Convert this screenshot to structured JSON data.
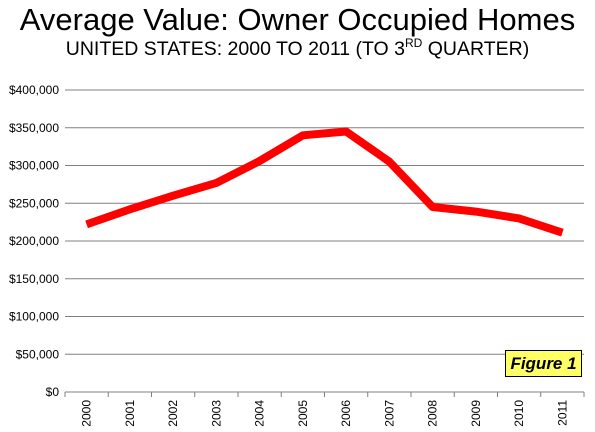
{
  "header": {
    "title": "Average Value: Owner Occupied Homes",
    "subtitle_main": "UNITED STATES: 2000 TO 2011 (TO 3",
    "subtitle_sup": "RD",
    "subtitle_end": " QUARTER)"
  },
  "figure_label": "Figure 1",
  "chart_data": {
    "type": "line",
    "title": "Average Value: Owner Occupied Homes",
    "subtitle": "UNITED STATES: 2000 TO 2011 (TO 3RD QUARTER)",
    "xlabel": "",
    "ylabel": "",
    "categories": [
      "2000",
      "2001",
      "2002",
      "2003",
      "2004",
      "2005",
      "2006",
      "2007",
      "2008",
      "2009",
      "2010",
      "2011"
    ],
    "series": [
      {
        "values": [
          222000,
          242000,
          260000,
          277000,
          306000,
          340000,
          345000,
          305000,
          245000,
          239000,
          230000,
          211000
        ]
      }
    ],
    "ylim": [
      0,
      400000
    ],
    "y_ticks": [
      "$0",
      "$50,000",
      "$100,000",
      "$150,000",
      "$200,000",
      "$250,000",
      "$300,000",
      "$350,000",
      "$400,000"
    ],
    "grid": true,
    "line_color": "#ff0000",
    "grid_color": "#808080",
    "legend": "none"
  }
}
